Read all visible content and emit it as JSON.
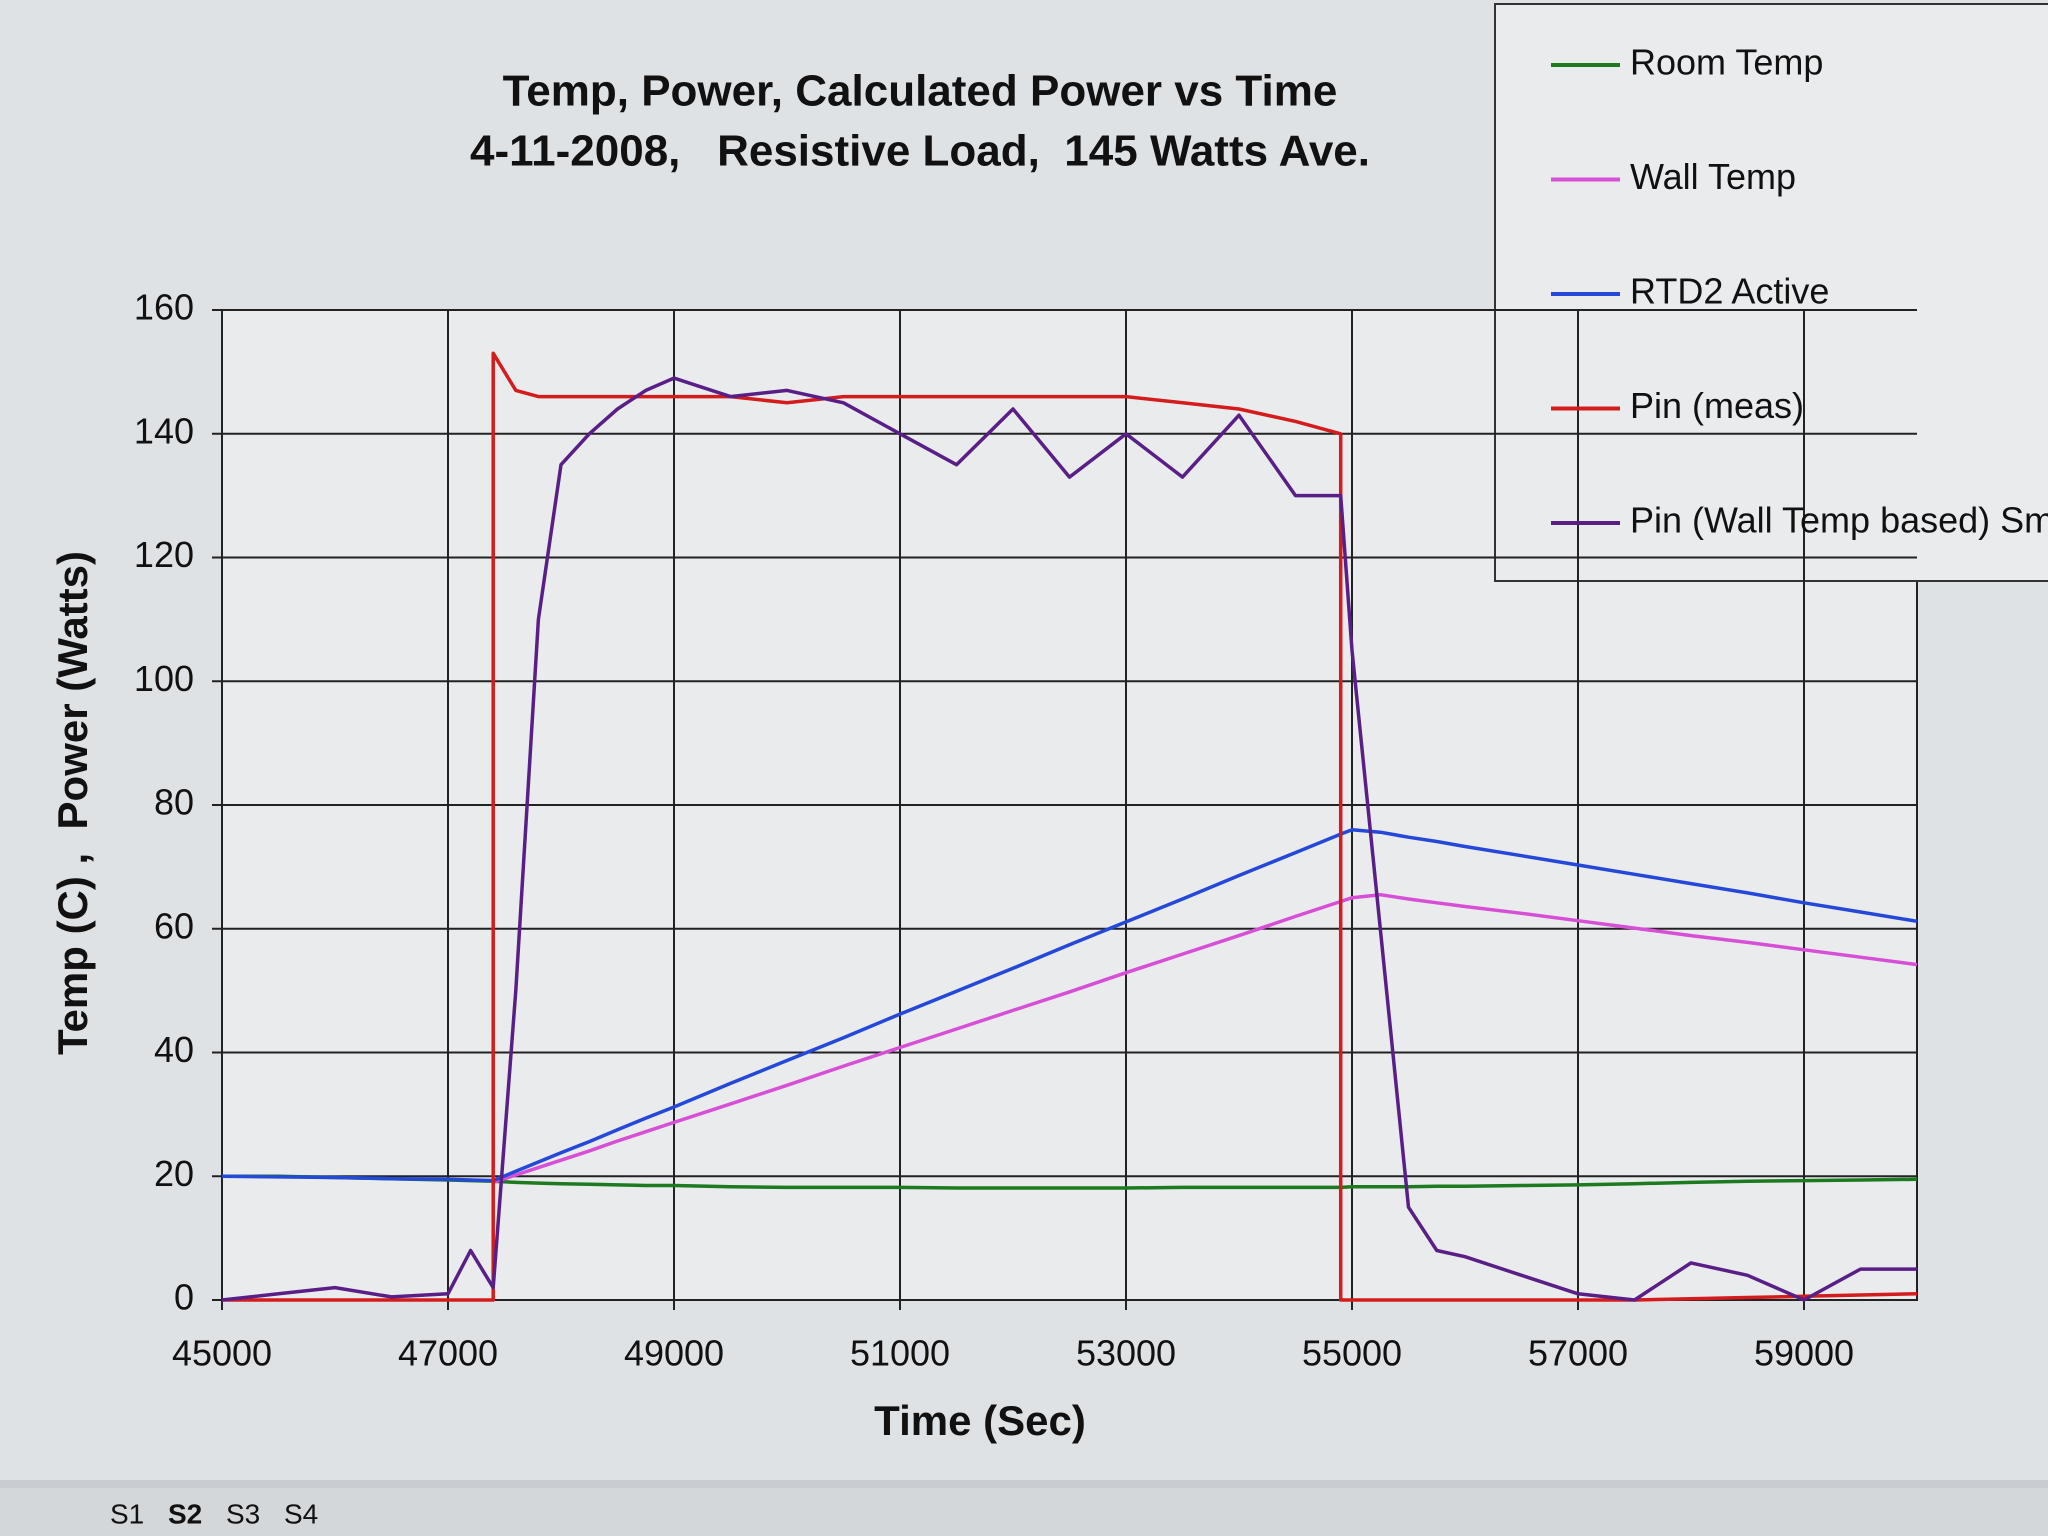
{
  "chart_data": {
    "type": "line",
    "title": "Temp, Power, Calculated Power vs Time",
    "subtitle": "4-11-2008,   Resistive Load,  145 Watts Ave.",
    "x_label": "Time (Sec)",
    "y_label": "Temp (C) ,  Power (Watts)",
    "x": [
      45000,
      45500,
      46000,
      46500,
      47000,
      47200,
      47400,
      47400,
      47600,
      47800,
      48000,
      48250,
      48500,
      48750,
      49000,
      49500,
      50000,
      50500,
      51000,
      51500,
      52000,
      52500,
      53000,
      53500,
      54000,
      54500,
      54900,
      54900,
      55000,
      55250,
      55500,
      55750,
      56000,
      56500,
      57000,
      57500,
      58000,
      58500,
      59000,
      59500,
      60000
    ],
    "series": [
      {
        "name": "Room Temp",
        "color": "#1e7a1e",
        "values": [
          20,
          20,
          19.8,
          19.6,
          19.4,
          19.3,
          19.2,
          19.2,
          19.0,
          18.9,
          18.8,
          18.7,
          18.6,
          18.5,
          18.5,
          18.3,
          18.2,
          18.2,
          18.2,
          18.1,
          18.1,
          18.1,
          18.1,
          18.2,
          18.2,
          18.2,
          18.2,
          18.2,
          18.3,
          18.3,
          18.3,
          18.4,
          18.4,
          18.5,
          18.6,
          18.8,
          19.0,
          19.2,
          19.3,
          19.4,
          19.5
        ]
      },
      {
        "name": "Wall Temp",
        "color": "#d64fd6",
        "values": [
          null,
          null,
          null,
          null,
          null,
          null,
          null,
          19,
          20.2,
          21.4,
          22.6,
          24.1,
          25.7,
          27.2,
          28.7,
          31.7,
          34.7,
          37.8,
          40.8,
          43.8,
          46.8,
          49.8,
          52.9,
          55.9,
          58.9,
          62,
          64.4,
          64.4,
          65,
          65.5,
          64.8,
          64.2,
          63.6,
          62.5,
          61.3,
          60.1,
          58.9,
          57.8,
          56.6,
          55.4,
          54.2
        ]
      },
      {
        "name": "RTD2 Active",
        "color": "#2448d8",
        "values": [
          20,
          19.9,
          19.8,
          19.6,
          19.5,
          19.4,
          19.3,
          19.3,
          20.8,
          22.3,
          23.8,
          25.6,
          27.5,
          29.4,
          31.2,
          35,
          38.7,
          42.4,
          46.2,
          49.9,
          53.6,
          57.4,
          61.1,
          64.8,
          68.6,
          72.3,
          75.3,
          75.3,
          76,
          75.6,
          74.8,
          74.1,
          73.3,
          71.8,
          70.3,
          68.8,
          67.3,
          65.8,
          64.2,
          62.7,
          61.2
        ]
      },
      {
        "name": "Pin (meas)",
        "color": "#d41c1c",
        "values": [
          0,
          0,
          0,
          0,
          0,
          0,
          0,
          153,
          147,
          146,
          146,
          146,
          146,
          146,
          146,
          146,
          145,
          146,
          146,
          146,
          146,
          146,
          146,
          145,
          144,
          142,
          140,
          0,
          0,
          0,
          0,
          0,
          0,
          0,
          0,
          0,
          0.2,
          0.4,
          0.6,
          0.8,
          1
        ]
      },
      {
        "name": "Pin (Wall Temp based) Smt",
        "color": "#5a1f86",
        "values": [
          0,
          1,
          2,
          0.5,
          1,
          8,
          2,
          2,
          50,
          110,
          135,
          140,
          144,
          147,
          149,
          146,
          147,
          145,
          140,
          135,
          144,
          133,
          140,
          133,
          143,
          130,
          130,
          130,
          105,
          60,
          15,
          8,
          7,
          4,
          1,
          0,
          6,
          4,
          0,
          5,
          5
        ]
      }
    ],
    "xlim": [
      45000,
      60000
    ],
    "xticks": [
      45000,
      47000,
      49000,
      51000,
      53000,
      55000,
      57000,
      59000
    ],
    "ylim": [
      0,
      160
    ],
    "yticks": [
      0,
      20,
      40,
      60,
      80,
      100,
      120,
      140,
      160
    ],
    "grid": true,
    "legend": "upper right"
  },
  "sheet_tabs": [
    "S1",
    "S2",
    "S3",
    "S4"
  ]
}
